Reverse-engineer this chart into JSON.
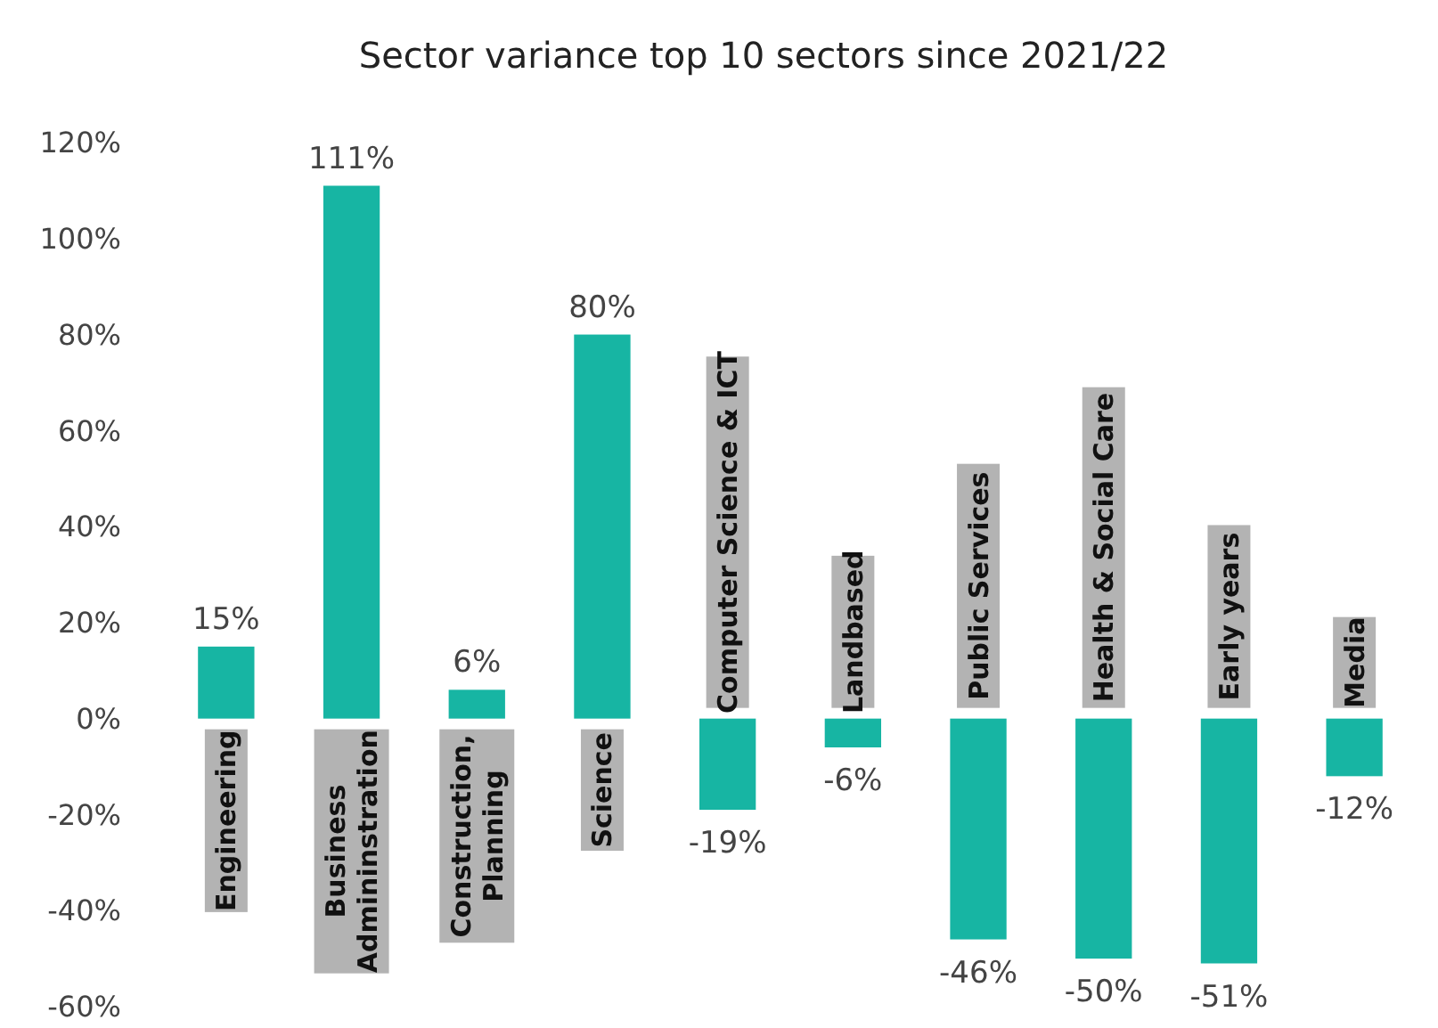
{
  "chart_data": {
    "type": "bar",
    "title": "Sector variance top 10 sectors since 2021/22",
    "categories": [
      "Engineering",
      "Business Admininstration",
      "Construction, Planning",
      "Science",
      "Computer Science & ICT",
      "Landbased",
      "Public Services",
      "Health & Social Care",
      "Early years",
      "Media"
    ],
    "values": [
      15,
      111,
      6,
      80,
      -19,
      -6,
      -46,
      -50,
      -51,
      -12
    ],
    "value_labels": [
      "15%",
      "111%",
      "6%",
      "80%",
      "-19%",
      "-6%",
      "-46%",
      "-50%",
      "-51%",
      "-12%"
    ],
    "color": "#17b5a3",
    "ylim": [
      -60,
      120
    ],
    "yticks": [
      {
        "value": -60,
        "label": "-60%"
      },
      {
        "value": -40,
        "label": "-40%"
      },
      {
        "value": -20,
        "label": "-20%"
      },
      {
        "value": 0,
        "label": "0%"
      },
      {
        "value": 20,
        "label": "20%"
      },
      {
        "value": 40,
        "label": "40%"
      },
      {
        "value": 60,
        "label": "60%"
      },
      {
        "value": 80,
        "label": "80%"
      },
      {
        "value": 100,
        "label": "100%"
      },
      {
        "value": 120,
        "label": "120%"
      }
    ],
    "grid": false
  }
}
